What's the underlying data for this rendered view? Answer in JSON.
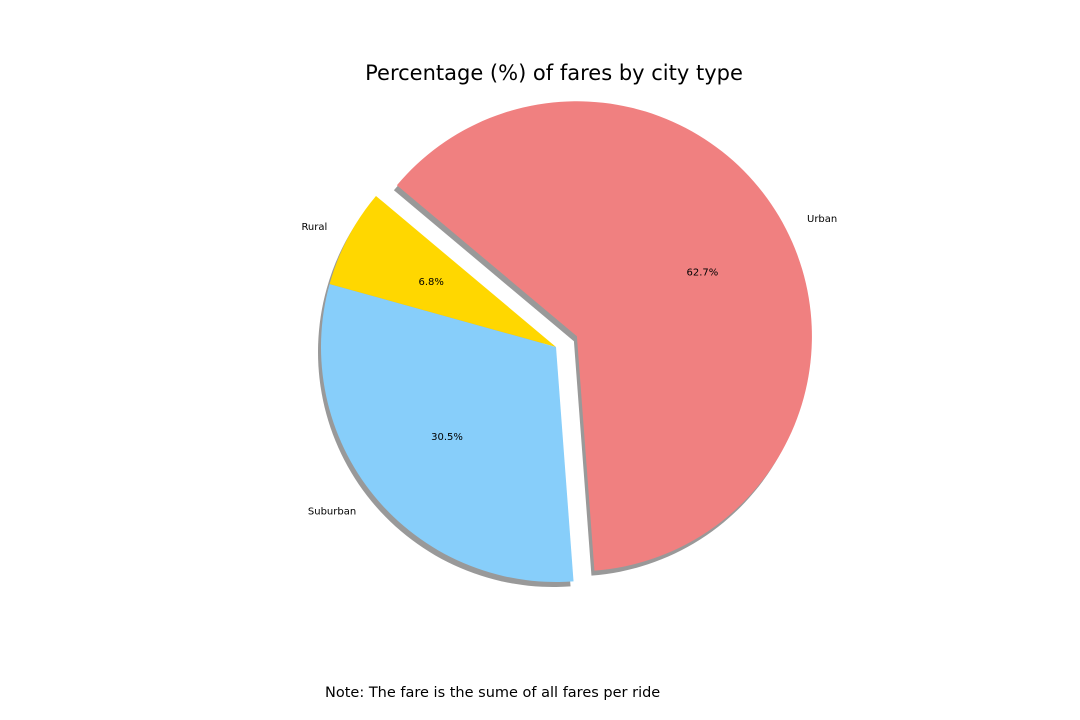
{
  "chart_data": {
    "type": "pie",
    "title": "Percentage (%) of fares by city type",
    "categories": [
      "Rural",
      "Suburban",
      "Urban"
    ],
    "values": [
      6.8,
      30.5,
      62.7
    ],
    "value_labels": [
      "6.8%",
      "30.5%",
      "62.7%"
    ],
    "colors": [
      "#FFD700",
      "#87CEFA",
      "#F08080"
    ],
    "explode": [
      0,
      0,
      0.1
    ],
    "start_angle_deg": 140,
    "shadow": true,
    "note": "Note: The fare is the sume of all fares per ride"
  }
}
